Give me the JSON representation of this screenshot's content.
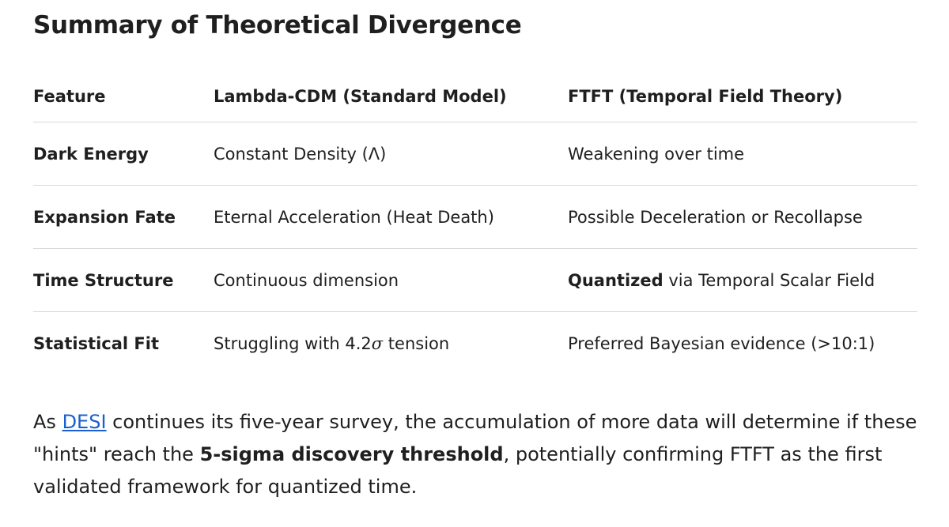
{
  "title": "Summary of Theoretical Divergence",
  "table": {
    "header": [
      "Feature",
      "Lambda-CDM (Standard Model)",
      "FTFT (Temporal Field Theory)"
    ],
    "rows": [
      [
        "Dark Energy",
        "Constant Density (Λ)",
        "Weakening over time"
      ],
      [
        "Expansion Fate",
        "Eternal Acceleration (Heat Death)",
        "Possible Deceleration or Recollapse"
      ],
      [
        "Time Structure",
        "Continuous dimension",
        {
          "bold": "Quantized",
          "text": " via Temporal Scalar Field"
        }
      ],
      [
        "Statistical Fit",
        {
          "before": "Struggling with 4.2",
          "symbol": "σ",
          "after": " tension"
        },
        "Preferred Bayesian evidence (>10:1)"
      ]
    ]
  },
  "paragraph": {
    "lead": "As ",
    "link": "DESI",
    "middle": " continues its five-year survey, the accumulation of more data will determine if these \"hints\" reach the ",
    "bold": "5-sigma discovery threshold",
    "tail": ", potentially confirming FTFT as the first validated framework for quantized time."
  }
}
